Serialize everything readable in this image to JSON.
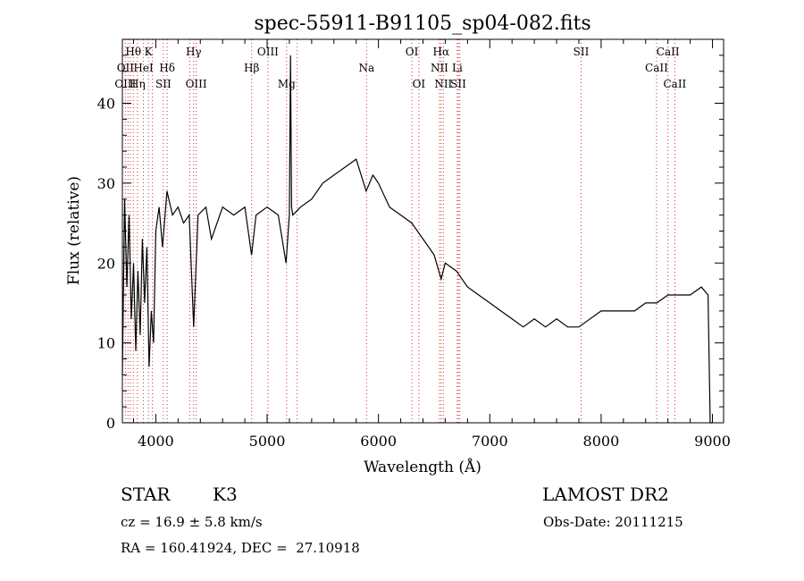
{
  "chart_data": {
    "type": "line",
    "title": "spec-55911-B91105_sp04-082.fits",
    "xlabel": "Wavelength (Å)",
    "ylabel": "Flux (relative)",
    "xlim": [
      3700,
      9100
    ],
    "ylim": [
      0,
      48
    ],
    "xticks": [
      4000,
      5000,
      6000,
      7000,
      8000,
      9000
    ],
    "yticks": [
      0,
      10,
      20,
      30,
      40
    ],
    "grid": false,
    "series": [
      {
        "color": "#000000",
        "x": [
          3700,
          3720,
          3740,
          3760,
          3780,
          3800,
          3820,
          3840,
          3860,
          3880,
          3900,
          3920,
          3940,
          3960,
          3980,
          4000,
          4030,
          4060,
          4100,
          4150,
          4200,
          4250,
          4300,
          4340,
          4380,
          4450,
          4500,
          4600,
          4700,
          4800,
          4860,
          4900,
          5000,
          5100,
          5170,
          5200,
          5210,
          5220,
          5230,
          5300,
          5400,
          5500,
          5600,
          5700,
          5800,
          5890,
          5950,
          6000,
          6100,
          6200,
          6300,
          6400,
          6500,
          6563,
          6600,
          6700,
          6800,
          6900,
          7000,
          7100,
          7200,
          7300,
          7400,
          7500,
          7600,
          7700,
          7800,
          7900,
          8000,
          8100,
          8200,
          8300,
          8400,
          8500,
          8600,
          8700,
          8800,
          8900,
          8960,
          8980,
          9000
        ],
        "y": [
          6,
          28,
          17,
          26,
          13,
          20,
          9,
          19,
          11,
          23,
          15,
          22,
          7,
          14,
          10,
          24,
          27,
          22,
          29,
          26,
          27,
          25,
          26,
          12,
          26,
          27,
          23,
          27,
          26,
          27,
          21,
          26,
          27,
          26,
          20,
          26,
          46,
          27,
          26,
          27,
          28,
          30,
          31,
          32,
          33,
          29,
          31,
          30,
          27,
          26,
          25,
          23,
          21,
          18,
          20,
          19,
          17,
          16,
          15,
          14,
          13,
          12,
          13,
          12,
          13,
          12,
          12,
          13,
          14,
          14,
          14,
          14,
          15,
          15,
          16,
          16,
          16,
          17,
          16,
          0,
          0
        ]
      }
    ],
    "lines": [
      {
        "label": "Hθ",
        "x": 3798,
        "row": 1
      },
      {
        "label": "K",
        "x": 3934,
        "row": 1
      },
      {
        "label": "Hγ",
        "x": 4340,
        "row": 1
      },
      {
        "label": "OIII",
        "x": 5007,
        "row": 1
      },
      {
        "label": "OI",
        "x": 6300,
        "row": 1
      },
      {
        "label": "Hα",
        "x": 6563,
        "row": 1
      },
      {
        "label": "SII",
        "x": 7820,
        "row": 1
      },
      {
        "label": "CaII",
        "x": 8600,
        "row": 1
      },
      {
        "label": "OII",
        "x": 3727,
        "row": 2
      },
      {
        "label": "HeI",
        "x": 3889,
        "row": 2
      },
      {
        "label": "Hδ",
        "x": 4102,
        "row": 2
      },
      {
        "label": "Hβ",
        "x": 4861,
        "row": 2
      },
      {
        "label": "Na",
        "x": 5893,
        "row": 2
      },
      {
        "label": "NII",
        "x": 6548,
        "row": 2
      },
      {
        "label": "Li",
        "x": 6708,
        "row": 2
      },
      {
        "label": "CaII",
        "x": 8498,
        "row": 2
      },
      {
        "label": "OIII",
        "x": 3727,
        "row": 3
      },
      {
        "label": "Hη",
        "x": 3835,
        "row": 3
      },
      {
        "label": "SII",
        "x": 4068,
        "row": 3
      },
      {
        "label": "OIII",
        "x": 4363,
        "row": 3
      },
      {
        "label": "Mg",
        "x": 5175,
        "row": 3
      },
      {
        "label": "OI",
        "x": 6363,
        "row": 3
      },
      {
        "label": "NII",
        "x": 6583,
        "row": 3
      },
      {
        "label": "SII",
        "x": 6717,
        "row": 3
      },
      {
        "label": "CaII",
        "x": 8662,
        "row": 3
      }
    ],
    "extra_lines": [
      3750,
      3771,
      3970,
      4305,
      5270,
      6731
    ]
  },
  "info": {
    "class": "STAR",
    "subclass": "K3",
    "survey": "LAMOST DR2",
    "cz": "cz = 16.9 ± 5.8 km/s",
    "obsdate": "Obs-Date: 20111215",
    "radec": "RA = 160.41924, DEC =  27.10918"
  }
}
